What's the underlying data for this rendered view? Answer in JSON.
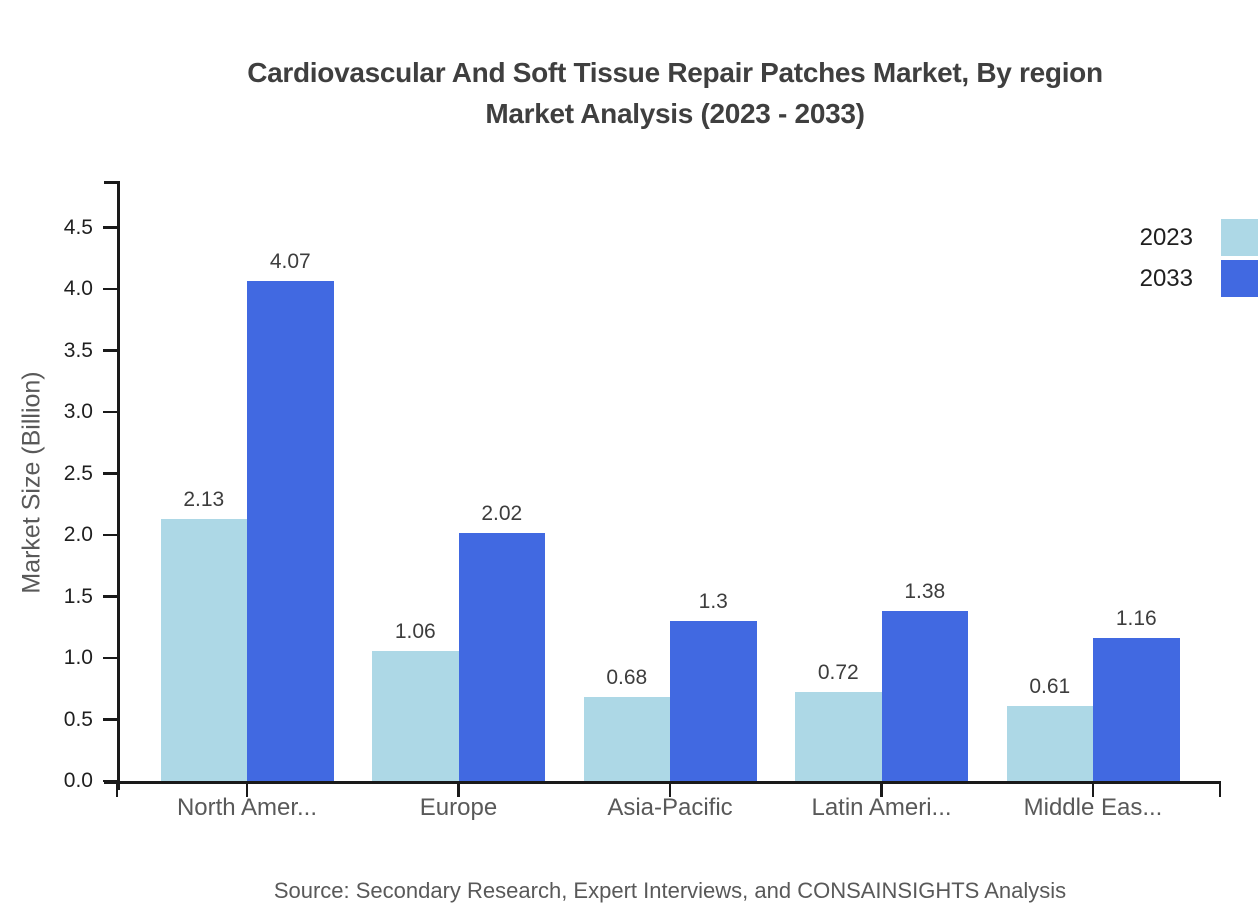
{
  "page": {
    "background": "#ffffff"
  },
  "chart_data": {
    "type": "bar",
    "title_line1": "Cardiovascular And Soft Tissue Repair Patches Market, By region",
    "title_line2": "Market Analysis (2023 - 2033)",
    "ylabel": "Market Size (Billion)",
    "categories": [
      "North Amer...",
      "Europe",
      "Asia-Pacific",
      "Latin Ameri...",
      "Middle Eas..."
    ],
    "series": [
      {
        "name": "2023",
        "color": "#ADD8E6",
        "values": [
          2.13,
          1.06,
          0.68,
          0.72,
          0.61
        ]
      },
      {
        "name": "2033",
        "color": "#4169E1",
        "values": [
          4.07,
          2.02,
          1.3,
          1.38,
          1.16
        ]
      }
    ],
    "ylim": [
      0,
      4.88
    ],
    "yticks": [
      "0.0",
      "0.5",
      "1.0",
      "1.5",
      "2.0",
      "2.5",
      "3.0",
      "3.5",
      "4.0",
      "4.5"
    ],
    "grid": false,
    "legend_position": "top-right",
    "value_labels_shown": true,
    "source": "Source: Secondary Research, Expert Interviews, and CONSAINSIGHTS Analysis",
    "colors": {
      "axis": "#1a1a1a",
      "title": "#3f3f3f",
      "tick_label": "#1f1f1f",
      "category_label": "#595959",
      "value_label": "#3d3d3d",
      "source": "#595959",
      "background": "#ffffff"
    }
  }
}
